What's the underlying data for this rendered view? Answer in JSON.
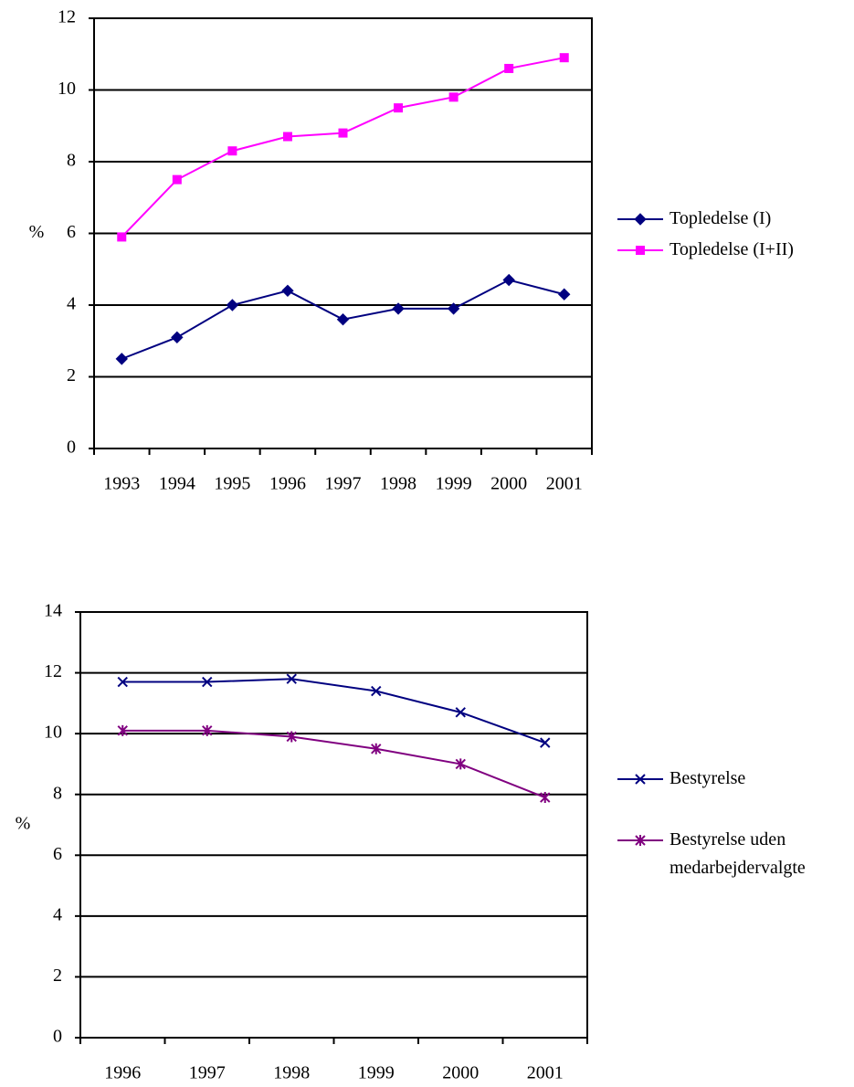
{
  "chart_data": [
    {
      "type": "line",
      "y_label": "%",
      "categories": [
        "1993",
        "1994",
        "1995",
        "1996",
        "1997",
        "1998",
        "1999",
        "2000",
        "2001"
      ],
      "series": [
        {
          "name": "Topledelse (I)",
          "color": "#000080",
          "marker": "diamond",
          "values": [
            2.5,
            3.1,
            4.0,
            4.4,
            3.6,
            3.9,
            3.9,
            4.7,
            4.3
          ]
        },
        {
          "name": "Topledelse (I+II)",
          "color": "#ff00ff",
          "marker": "square",
          "values": [
            5.9,
            7.5,
            8.3,
            8.7,
            8.8,
            9.5,
            9.8,
            10.6,
            10.9
          ]
        }
      ],
      "ylim": [
        0,
        12
      ],
      "yticks": [
        0,
        2,
        4,
        6,
        8,
        10,
        12
      ],
      "grid": true,
      "legend": "right"
    },
    {
      "type": "line",
      "y_label": "%",
      "categories": [
        "1996",
        "1997",
        "1998",
        "1999",
        "2000",
        "2001"
      ],
      "series": [
        {
          "name": "Bestyrelse",
          "color": "#000080",
          "marker": "x",
          "values": [
            11.7,
            11.7,
            11.8,
            11.4,
            10.7,
            9.7
          ]
        },
        {
          "name": "Bestyrelse uden medarbejdervalgte",
          "color": "#800080",
          "marker": "asterisk",
          "values": [
            10.1,
            10.1,
            9.9,
            9.5,
            9.0,
            7.9
          ]
        }
      ],
      "ylim": [
        0,
        14
      ],
      "yticks": [
        0,
        2,
        4,
        6,
        8,
        10,
        12,
        14
      ],
      "grid": true,
      "legend": "right"
    }
  ]
}
